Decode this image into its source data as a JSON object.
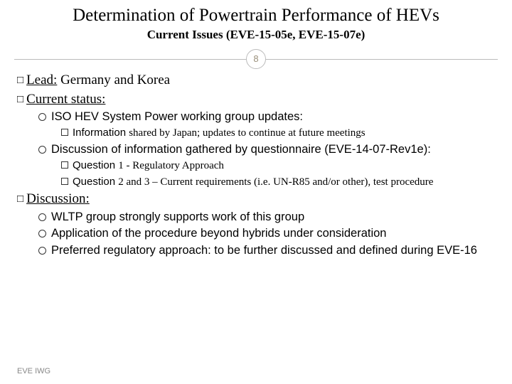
{
  "header": {
    "title": "Determination of Powertrain Performance of HEVs",
    "subtitle": "Current Issues (EVE-15-05e, EVE-15-07e)"
  },
  "page_number": "8",
  "sections": {
    "lead": {
      "label": "Lead:",
      "value": " Germany and Korea"
    },
    "current_status": {
      "label": "Current status:",
      "items": [
        {
          "text": "ISO HEV System Power working group updates:",
          "sub": [
            {
              "prefix": "Information ",
              "rest": "shared by Japan; updates to continue at future meetings"
            }
          ]
        },
        {
          "text": "Discussion of information gathered by questionnaire (EVE-14-07-Rev1e):",
          "sub": [
            {
              "prefix": "Question ",
              "rest": "1 - Regulatory Approach"
            },
            {
              "prefix": "Question ",
              "rest": "2 and 3 – Current requirements (i.e. UN-R85 and/or other), test procedure"
            }
          ]
        }
      ]
    },
    "discussion": {
      "label": "Discussion",
      "items": [
        "WLTP group strongly supports work of this group",
        "Application of the procedure beyond hybrids under consideration",
        "Preferred regulatory approach: to be further discussed and defined during EVE-16"
      ]
    }
  },
  "footer": "EVE IWG",
  "colors": {
    "page_num": "#9a8f7a",
    "divider": "#bbbbbb",
    "footer": "#888888"
  },
  "typography": {
    "title_fontsize": 25,
    "subtitle_fontsize": 17,
    "l1_fontsize": 19,
    "l2_fontsize": 16.5,
    "l3_fontsize": 15,
    "footer_fontsize": 11
  }
}
